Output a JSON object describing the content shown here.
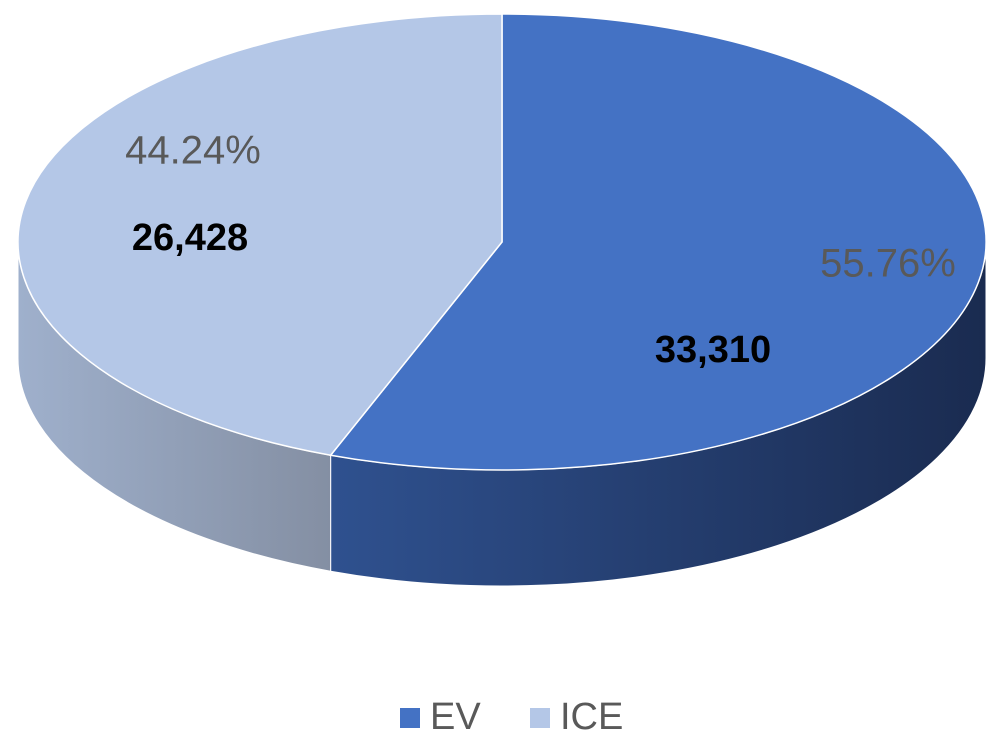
{
  "chart_data": {
    "type": "pie",
    "categories": [
      "EV",
      "ICE"
    ],
    "values": [
      33310,
      26428
    ],
    "value_labels": [
      "33,310",
      "26,428"
    ],
    "percentages": [
      55.76,
      44.24
    ],
    "percentage_labels": [
      "55.76%",
      "44.24%"
    ],
    "colors": [
      "#4472c4",
      "#b4c7e7"
    ],
    "legend": "bottom"
  }
}
